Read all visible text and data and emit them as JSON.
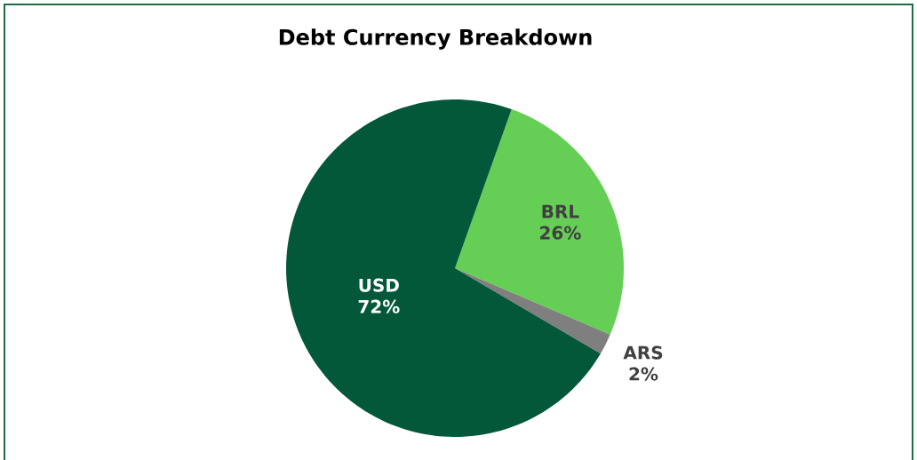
{
  "chart_data": {
    "type": "pie",
    "title": "Debt Currency Breakdown",
    "categories": [
      "BRL",
      "ARS",
      "USD"
    ],
    "values": [
      26,
      2,
      72
    ],
    "value_labels": [
      "26%",
      "2%",
      "72%"
    ],
    "colors": [
      "#65cf55",
      "#7f7f7f",
      "#025839"
    ]
  }
}
